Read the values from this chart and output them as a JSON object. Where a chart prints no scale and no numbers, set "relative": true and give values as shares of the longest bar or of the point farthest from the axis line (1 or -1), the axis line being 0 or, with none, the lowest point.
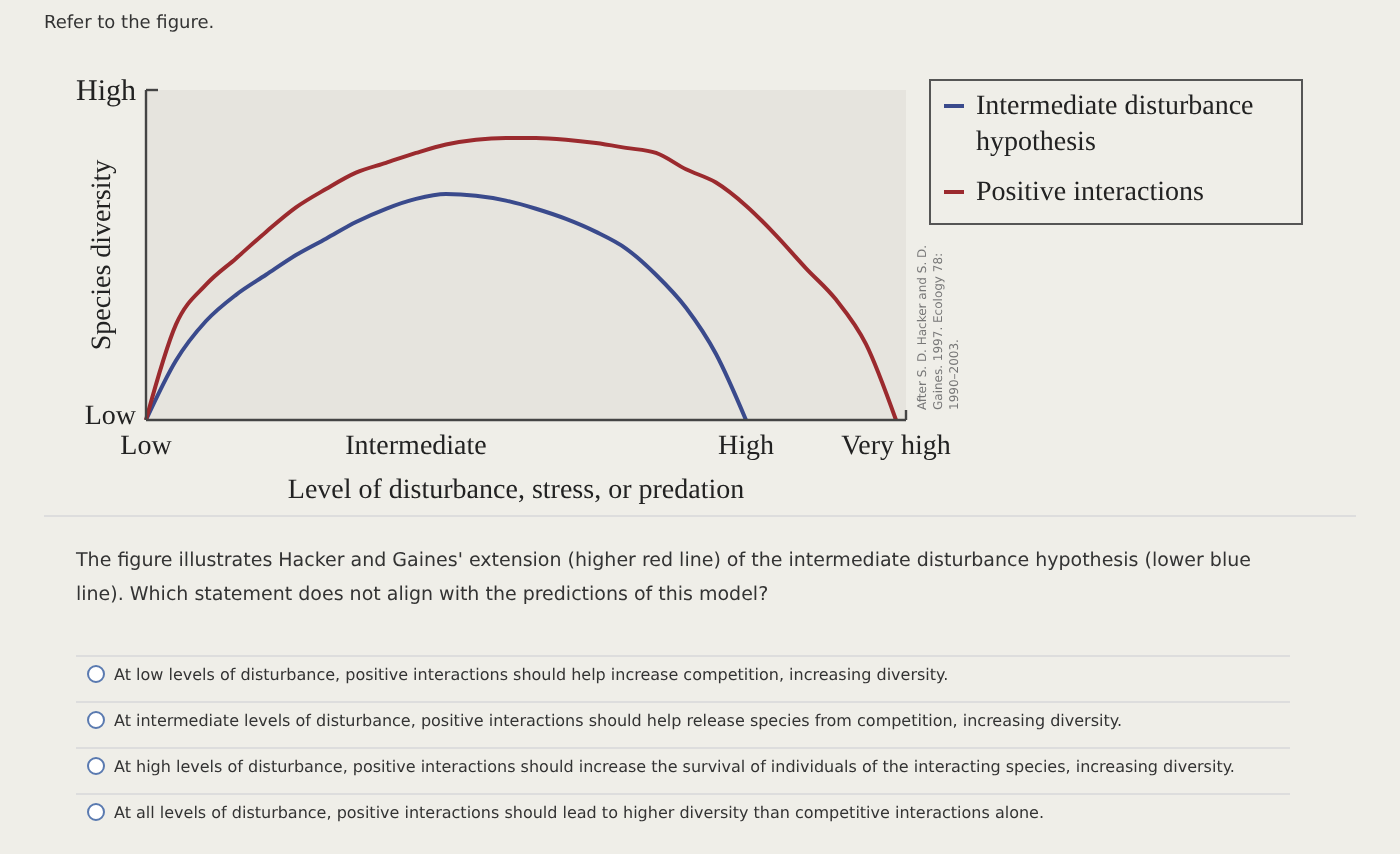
{
  "chart_data": {
    "type": "line",
    "relative": true,
    "xlabel": "Level of disturbance, stress, or predation",
    "ylabel": "Species diversity",
    "categories": [
      "Low",
      null,
      null,
      null,
      null,
      null,
      null,
      null,
      null,
      "Intermediate",
      null,
      null,
      null,
      null,
      null,
      null,
      null,
      null,
      null,
      null,
      "High",
      null,
      null,
      null,
      null,
      "Very high"
    ],
    "series": [
      {
        "name": "Intermediate disturbance hypothesis",
        "color": "#3a4a8c",
        "values": [
          0,
          0.211,
          0.351,
          0.444,
          0.515,
          0.585,
          0.643,
          0.702,
          0.749,
          0.784,
          0.801,
          0.795,
          0.778,
          0.749,
          0.713,
          0.667,
          0.608,
          0.515,
          0.398,
          0.234,
          0,
          null,
          null,
          null,
          null,
          null
        ]
      },
      {
        "name": "Positive interactions",
        "color": "#9b2a2e",
        "values": [
          0,
          0.339,
          0.48,
          0.573,
          0.667,
          0.754,
          0.819,
          0.877,
          0.912,
          0.947,
          0.977,
          0.994,
          1,
          1,
          0.994,
          0.982,
          0.965,
          0.947,
          0.889,
          0.842,
          0.76,
          0.655,
          0.538,
          0.427,
          0.269,
          0
        ]
      }
    ],
    "legend": "top right",
    "annotations": [
      "Refer to the figure.",
      "After S. D. Hacker and S. D.\nGaines. 1997. Ecology 78:\n1990–2003.",
      "The figure illustrates Hacker and Gaines' extension (higher red line) of the intermediate disturbance hypothesis (lower blue line). Which statement does not align with the predictions of this model?",
      "At low levels of disturbance, positive interactions should help increase competition, increasing diversity.",
      "At intermediate levels of disturbance, positive interactions should help release species from competition, increasing diversity.",
      "At high levels of disturbance, positive interactions should increase the survival of individuals of the interacting species, increasing diversity.",
      "At all levels of disturbance, positive interactions should lead to higher diversity than competitive interactions alone.",
      "High",
      "Low"
    ]
  }
}
